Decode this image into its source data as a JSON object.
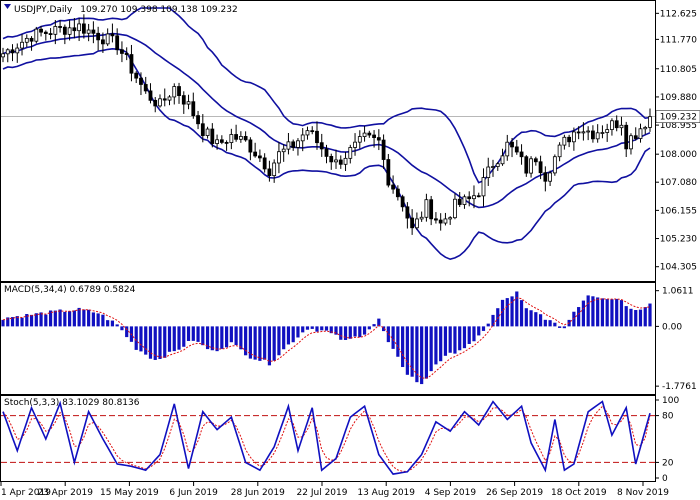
{
  "header": {
    "symbol": "USDJPY,Daily",
    "ohlc": "109.270 109.398 109.138 109.232"
  },
  "price_panel": {
    "ticks": [
      "112.625",
      "111.770",
      "110.805",
      "109.880",
      "108.955",
      "108.000",
      "107.080",
      "106.155",
      "105.230",
      "104.305"
    ],
    "current_price": "109.232"
  },
  "macd_panel": {
    "label": "MACD(5,34,4) 0.6789 0.5824",
    "ticks": [
      "1.0611",
      "0.00",
      "-1.7761"
    ]
  },
  "stoch_panel": {
    "label": "Stoch(5,3,3) 83.1029 80.8136",
    "ticks": [
      "100",
      "80",
      "20",
      "0"
    ]
  },
  "x_axis": {
    "labels": [
      "1 Apr 2019",
      "23 Apr 2019",
      "15 May 2019",
      "6 Jun 2019",
      "28 Jun 2019",
      "22 Jul 2019",
      "13 Aug 2019",
      "4 Sep 2019",
      "26 Sep 2019",
      "18 Oct 2019",
      "8 Nov 2019"
    ]
  },
  "colors": {
    "bands": "#1010a0",
    "macd_bars": "#1010c0",
    "signal": "#e01010",
    "stoch_main": "#1010c0",
    "stoch_signal": "#e01010",
    "levels": "#c01010"
  },
  "chart_data": {
    "type": "candlestick",
    "x_labels": [
      "1 Apr 2019",
      "23 Apr 2019",
      "15 May 2019",
      "6 Jun 2019",
      "28 Jun 2019",
      "22 Jul 2019",
      "13 Aug 2019",
      "4 Sep 2019",
      "26 Sep 2019",
      "18 Oct 2019",
      "8 Nov 2019"
    ],
    "price_path": [
      [
        0,
        111.3
      ],
      [
        6,
        111.9
      ],
      [
        12,
        112.1
      ],
      [
        16,
        112.2
      ],
      [
        20,
        111.9
      ],
      [
        24,
        111.6
      ],
      [
        27,
        110.8
      ],
      [
        30,
        110.0
      ],
      [
        33,
        109.6
      ],
      [
        36,
        110.2
      ],
      [
        39,
        109.6
      ],
      [
        42,
        108.8
      ],
      [
        45,
        108.3
      ],
      [
        48,
        108.6
      ],
      [
        51,
        108.4
      ],
      [
        54,
        107.9
      ],
      [
        56,
        107.5
      ],
      [
        58,
        108.0
      ],
      [
        61,
        108.3
      ],
      [
        64,
        108.8
      ],
      [
        67,
        108.2
      ],
      [
        70,
        107.7
      ],
      [
        73,
        108.1
      ],
      [
        76,
        108.5
      ],
      [
        79,
        108.4
      ],
      [
        81,
        107.2
      ],
      [
        84,
        106.4
      ],
      [
        86,
        105.5
      ],
      [
        89,
        106.3
      ],
      [
        92,
        105.7
      ],
      [
        95,
        106.3
      ],
      [
        98,
        106.5
      ],
      [
        100,
        106.8
      ],
      [
        103,
        107.7
      ],
      [
        106,
        108.3
      ],
      [
        108,
        108.0
      ],
      [
        110,
        107.5
      ],
      [
        112,
        107.9
      ],
      [
        114,
        107.3
      ],
      [
        116,
        107.9
      ],
      [
        118,
        108.4
      ],
      [
        121,
        108.9
      ],
      [
        124,
        108.7
      ],
      [
        127,
        108.9
      ],
      [
        130,
        109.1
      ],
      [
        131,
        108.4
      ],
      [
        133,
        108.7
      ],
      [
        136,
        109.232
      ]
    ],
    "macd_path": [
      [
        0,
        0.25
      ],
      [
        6,
        0.35
      ],
      [
        12,
        0.45
      ],
      [
        16,
        0.5
      ],
      [
        20,
        0.4
      ],
      [
        24,
        0.05
      ],
      [
        28,
        -0.65
      ],
      [
        32,
        -1.0
      ],
      [
        36,
        -0.75
      ],
      [
        40,
        -0.4
      ],
      [
        44,
        -0.75
      ],
      [
        48,
        -0.5
      ],
      [
        52,
        -0.9
      ],
      [
        56,
        -1.1
      ],
      [
        60,
        -0.55
      ],
      [
        64,
        -0.05
      ],
      [
        68,
        -0.15
      ],
      [
        72,
        -0.45
      ],
      [
        76,
        -0.2
      ],
      [
        79,
        0.2
      ],
      [
        81,
        -0.5
      ],
      [
        85,
        -1.4
      ],
      [
        88,
        -1.75
      ],
      [
        91,
        -1.1
      ],
      [
        95,
        -0.75
      ],
      [
        99,
        -0.5
      ],
      [
        102,
        0.1
      ],
      [
        105,
        0.75
      ],
      [
        108,
        1.0
      ],
      [
        110,
        0.5
      ],
      [
        113,
        0.35
      ],
      [
        116,
        0.05
      ],
      [
        118,
        -0.05
      ],
      [
        120,
        0.45
      ],
      [
        123,
        0.95
      ],
      [
        127,
        0.85
      ],
      [
        130,
        0.8
      ],
      [
        132,
        0.5
      ],
      [
        134,
        0.55
      ],
      [
        136,
        0.6789
      ]
    ],
    "macd_signal_value": 0.5824,
    "stoch_path": [
      [
        0,
        85
      ],
      [
        3,
        35
      ],
      [
        6,
        90
      ],
      [
        9,
        50
      ],
      [
        12,
        96
      ],
      [
        15,
        20
      ],
      [
        18,
        85
      ],
      [
        21,
        50
      ],
      [
        24,
        18
      ],
      [
        27,
        15
      ],
      [
        30,
        10
      ],
      [
        33,
        30
      ],
      [
        36,
        95
      ],
      [
        39,
        12
      ],
      [
        42,
        85
      ],
      [
        45,
        62
      ],
      [
        48,
        78
      ],
      [
        51,
        20
      ],
      [
        54,
        10
      ],
      [
        57,
        40
      ],
      [
        60,
        92
      ],
      [
        62,
        35
      ],
      [
        65,
        90
      ],
      [
        67,
        10
      ],
      [
        70,
        25
      ],
      [
        73,
        78
      ],
      [
        76,
        92
      ],
      [
        79,
        30
      ],
      [
        82,
        5
      ],
      [
        85,
        8
      ],
      [
        88,
        30
      ],
      [
        91,
        72
      ],
      [
        94,
        60
      ],
      [
        97,
        85
      ],
      [
        100,
        68
      ],
      [
        103,
        98
      ],
      [
        106,
        75
      ],
      [
        109,
        92
      ],
      [
        111,
        45
      ],
      [
        114,
        10
      ],
      [
        116,
        75
      ],
      [
        118,
        10
      ],
      [
        120,
        18
      ],
      [
        123,
        85
      ],
      [
        126,
        98
      ],
      [
        128,
        55
      ],
      [
        131,
        90
      ],
      [
        133,
        18
      ],
      [
        136,
        83.1
      ]
    ],
    "stoch_signal_value": 80.8136,
    "stoch_levels": [
      20,
      80
    ],
    "ylim_price": [
      104.0,
      112.8
    ],
    "ylim_macd": [
      -1.95,
      1.2
    ],
    "ylim_stoch": [
      0,
      100
    ]
  }
}
